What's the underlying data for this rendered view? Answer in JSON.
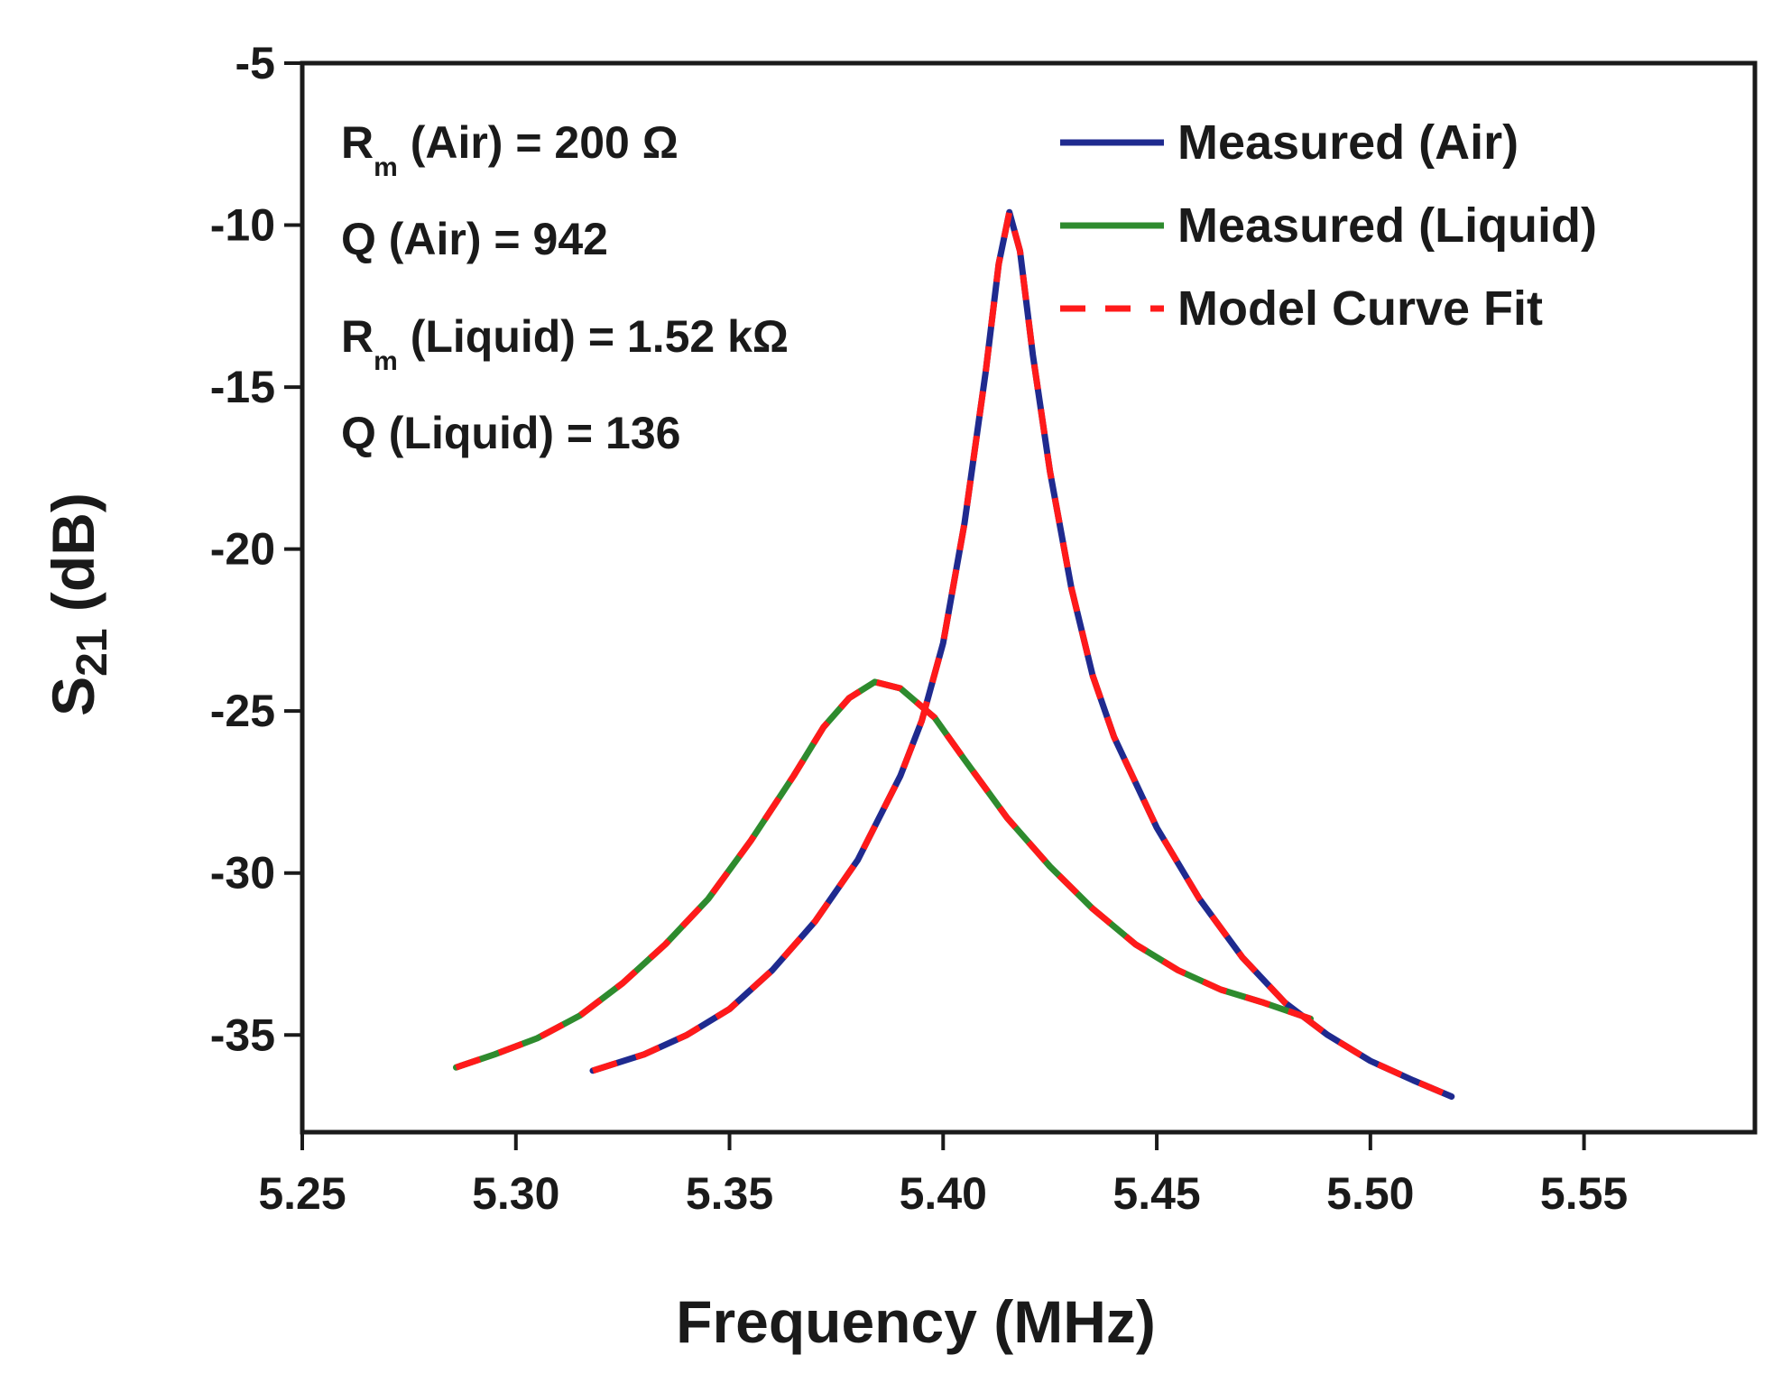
{
  "chart_data": {
    "type": "line",
    "title": "",
    "xlabel": "Frequency (MHz)",
    "ylabel": {
      "main": "S",
      "sub": "21",
      "rest": " (dB)"
    },
    "xlim": [
      5.25,
      5.59
    ],
    "ylim": [
      -38.0,
      -5.0
    ],
    "xticks": [
      "5.25",
      "5.30",
      "5.35",
      "5.40",
      "5.45",
      "5.50",
      "5.55"
    ],
    "yticks": [
      "-5",
      "-10",
      "-15",
      "-20",
      "-25",
      "-30",
      "-35"
    ],
    "grid": false,
    "legend_position": "top-right",
    "annotations": [
      {
        "pre": "R",
        "sub": "m",
        "post": " (Air) = 200 Ω"
      },
      {
        "pre": "Q (Air) = 942",
        "sub": "",
        "post": ""
      },
      {
        "pre": "R",
        "sub": "m",
        "post": " (Liquid) = 1.52 kΩ"
      },
      {
        "pre": "Q (Liquid) = 136",
        "sub": "",
        "post": ""
      }
    ],
    "series": [
      {
        "name": "Measured (Air)",
        "color": "#1f2a8f",
        "style": "solid",
        "points": [
          [
            5.318,
            -36.1
          ],
          [
            5.33,
            -35.6
          ],
          [
            5.34,
            -35.0
          ],
          [
            5.35,
            -34.2
          ],
          [
            5.36,
            -33.0
          ],
          [
            5.37,
            -31.5
          ],
          [
            5.38,
            -29.6
          ],
          [
            5.39,
            -27.0
          ],
          [
            5.395,
            -25.3
          ],
          [
            5.4,
            -22.9
          ],
          [
            5.405,
            -19.2
          ],
          [
            5.41,
            -14.5
          ],
          [
            5.413,
            -11.2
          ],
          [
            5.4155,
            -9.6
          ],
          [
            5.418,
            -10.8
          ],
          [
            5.421,
            -14.0
          ],
          [
            5.425,
            -17.6
          ],
          [
            5.43,
            -21.2
          ],
          [
            5.435,
            -23.9
          ],
          [
            5.44,
            -25.8
          ],
          [
            5.45,
            -28.6
          ],
          [
            5.46,
            -30.8
          ],
          [
            5.47,
            -32.6
          ],
          [
            5.48,
            -34.0
          ],
          [
            5.49,
            -35.0
          ],
          [
            5.5,
            -35.8
          ],
          [
            5.51,
            -36.4
          ],
          [
            5.519,
            -36.9
          ]
        ]
      },
      {
        "name": "Measured (Liquid)",
        "color": "#2e8b2e",
        "style": "solid",
        "points": [
          [
            5.286,
            -36.0
          ],
          [
            5.295,
            -35.6
          ],
          [
            5.305,
            -35.1
          ],
          [
            5.315,
            -34.4
          ],
          [
            5.325,
            -33.4
          ],
          [
            5.335,
            -32.2
          ],
          [
            5.345,
            -30.8
          ],
          [
            5.355,
            -29.0
          ],
          [
            5.365,
            -27.0
          ],
          [
            5.372,
            -25.5
          ],
          [
            5.378,
            -24.6
          ],
          [
            5.384,
            -24.1
          ],
          [
            5.39,
            -24.3
          ],
          [
            5.398,
            -25.2
          ],
          [
            5.405,
            -26.5
          ],
          [
            5.415,
            -28.3
          ],
          [
            5.425,
            -29.8
          ],
          [
            5.435,
            -31.1
          ],
          [
            5.445,
            -32.2
          ],
          [
            5.455,
            -33.0
          ],
          [
            5.465,
            -33.6
          ],
          [
            5.475,
            -34.0
          ],
          [
            5.486,
            -34.5
          ]
        ]
      },
      {
        "name": "Model Curve Fit",
        "color": "#ff1a1a",
        "style": "dashed",
        "overlays": [
          "Measured (Air)",
          "Measured (Liquid)"
        ]
      }
    ]
  }
}
